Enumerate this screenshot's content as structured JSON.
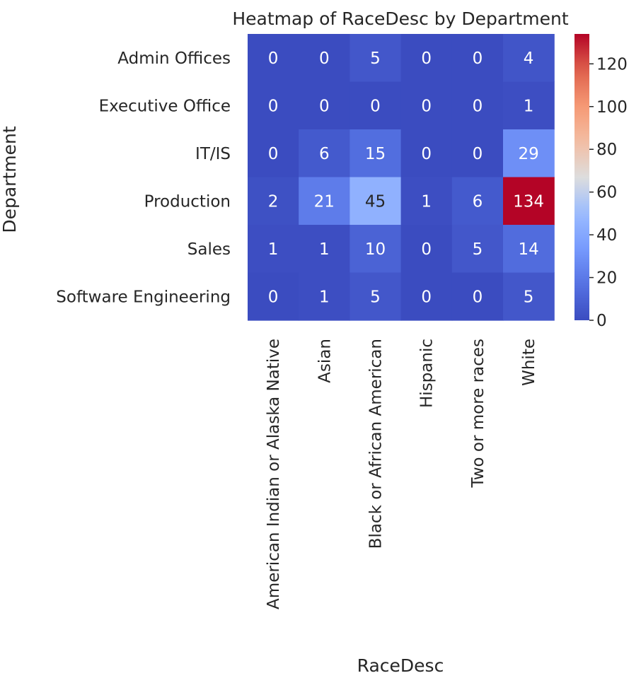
{
  "chart_data": {
    "type": "heatmap",
    "title": "Heatmap of RaceDesc by Department",
    "xlabel": "RaceDesc",
    "ylabel": "Department",
    "x": [
      "American Indian or Alaska Native",
      "Asian",
      "Black or African American",
      "Hispanic",
      "Two or more races",
      "White"
    ],
    "y": [
      "Admin Offices",
      "Executive Office",
      "IT/IS",
      "Production",
      "Sales",
      "Software Engineering"
    ],
    "values": [
      [
        0,
        0,
        5,
        0,
        0,
        4
      ],
      [
        0,
        0,
        0,
        0,
        0,
        1
      ],
      [
        0,
        6,
        15,
        0,
        0,
        29
      ],
      [
        2,
        21,
        45,
        1,
        6,
        134
      ],
      [
        1,
        1,
        10,
        0,
        5,
        14
      ],
      [
        0,
        1,
        5,
        0,
        0,
        5
      ]
    ],
    "colormap": "coolwarm",
    "vmin": 0,
    "vmax": 134,
    "colorbar_ticks": [
      "0",
      "20",
      "40",
      "60",
      "80",
      "100",
      "120"
    ],
    "annotated": true,
    "grid": false
  }
}
